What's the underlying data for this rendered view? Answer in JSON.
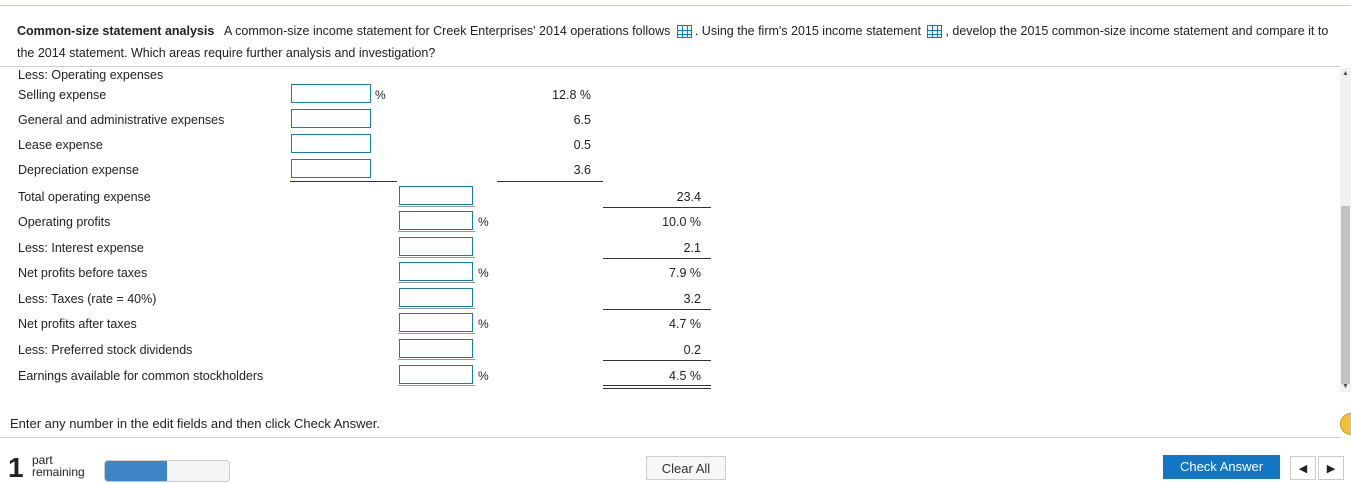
{
  "question": {
    "title": "Common-size statement analysis",
    "text1": "A common-size income statement for Creek Enterprises' 2014 operations follows",
    "text2": ". Using the firm's 2015 income statement",
    "text3": ", develop the 2015 common-size income statement and compare it to the 2014 statement. Which areas require further analysis and investigation?"
  },
  "section_label": "Less: Operating expenses",
  "rows": [
    {
      "label": "Selling expense",
      "unit": "%",
      "value": "12.8 %"
    },
    {
      "label": "General and administrative expenses",
      "value": "6.5"
    },
    {
      "label": "Lease expense",
      "value": "0.5"
    },
    {
      "label": "Depreciation expense",
      "value": "3.6"
    },
    {
      "label": "Total operating expense",
      "value": "23.4"
    },
    {
      "label": "Operating profits",
      "unit": "%",
      "value": "10.0 %"
    },
    {
      "label": "Less: Interest expense",
      "value": "2.1"
    },
    {
      "label": "Net profits before taxes",
      "unit": "%",
      "value": "7.9 %"
    },
    {
      "label": "Less: Taxes (rate = 40%)",
      "value": "3.2"
    },
    {
      "label": "Net profits after taxes",
      "unit": "%",
      "value": "4.7 %"
    },
    {
      "label": "Less: Preferred stock dividends",
      "value": "0.2"
    },
    {
      "label": "Earnings available for common stockholders",
      "unit": "%",
      "value": "4.5 %"
    }
  ],
  "instructions": "Enter any number in the edit fields and then click Check Answer.",
  "footer": {
    "parts_count": "1",
    "parts_label_1": "part",
    "parts_label_2": "remaining",
    "progress": 0.5,
    "clear_all": "Clear All",
    "check_answer": "Check Answer",
    "prev": "◀",
    "next": "▶"
  },
  "colors": {
    "accent": "#1276c6",
    "progress": "#3d85c6"
  }
}
